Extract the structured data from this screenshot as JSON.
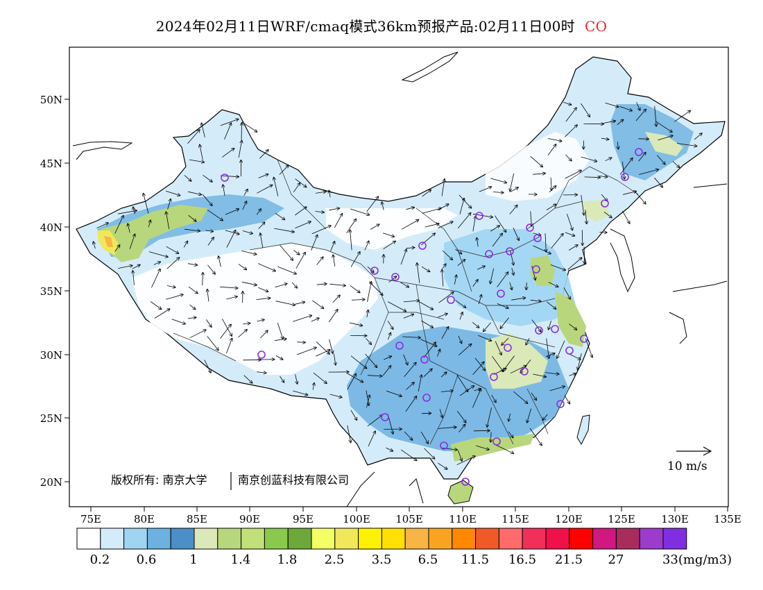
{
  "title": {
    "text": "2024年02月11日WRF/cmaq模式36km预报产品:02月11日00时",
    "species": "CO",
    "species_color": "#e8242a"
  },
  "axes": {
    "x_ticks": [
      "75E",
      "80E",
      "85E",
      "90E",
      "95E",
      "100E",
      "105E",
      "110E",
      "115E",
      "120E",
      "125E",
      "130E",
      "135E"
    ],
    "y_ticks": [
      "50N",
      "45N",
      "40N",
      "35N",
      "30N",
      "25N",
      "20N"
    ]
  },
  "credit": {
    "left": "版权所有: 南京大学",
    "right": "南京创蓝科技有限公司"
  },
  "wind_scale": {
    "label": "10 m/s"
  },
  "colorbar": {
    "colors": [
      "#ffffff",
      "#d4ecfa",
      "#9fd5f3",
      "#6cb1e0",
      "#4a8fc8",
      "#dbe9b8",
      "#b8d77c",
      "#c2e07a",
      "#8ac94c",
      "#6ca83a",
      "#f4ff66",
      "#f0e85a",
      "#fff200",
      "#ffe000",
      "#f8b444",
      "#f9a421",
      "#ff8800",
      "#f05a28",
      "#ff6a6a",
      "#f03058",
      "#f0104a",
      "#ff0000",
      "#d01880",
      "#a82c5c",
      "#9b3ccc",
      "#7f2fe0"
    ],
    "labels": [
      "0.2",
      "0.6",
      "1",
      "1.4",
      "1.8",
      "2.5",
      "3.5",
      "6.5",
      "11.5",
      "16.5",
      "21.5",
      "27",
      "33(mg/m3)"
    ]
  },
  "map_legend": {
    "city_marker_color": "#8a2be2",
    "water_color": "#ffffff",
    "land_low_color": "#d4ecfa"
  }
}
